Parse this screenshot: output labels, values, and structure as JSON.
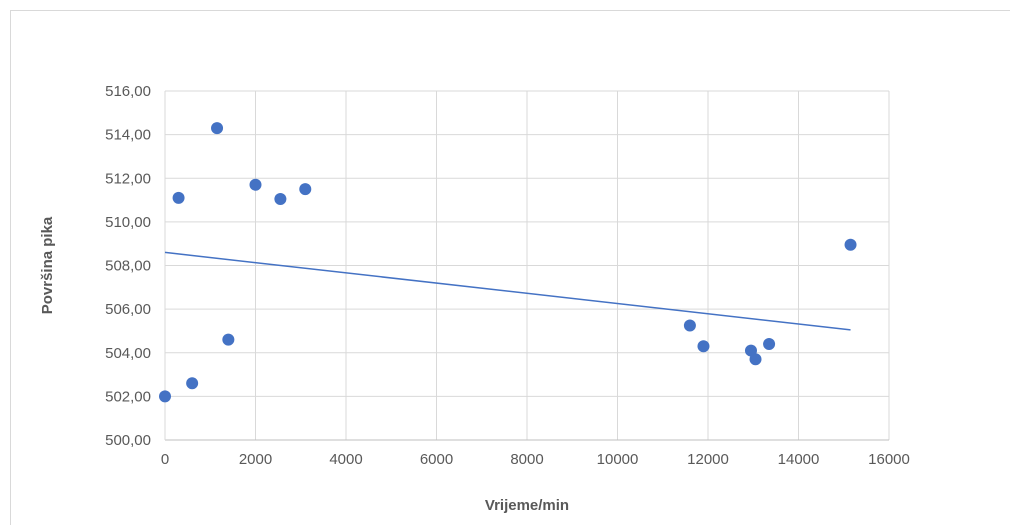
{
  "chart_data": {
    "type": "scatter",
    "title": "",
    "xlabel": "Vrijeme/min",
    "ylabel": "Površina pika",
    "xlim": [
      0,
      16000
    ],
    "ylim": [
      500,
      516
    ],
    "x_ticks": [
      "0",
      "2000",
      "4000",
      "6000",
      "8000",
      "10000",
      "12000",
      "14000",
      "16000"
    ],
    "y_ticks": [
      "500,00",
      "502,00",
      "504,00",
      "506,00",
      "508,00",
      "510,00",
      "512,00",
      "514,00",
      "516,00"
    ],
    "grid": true,
    "legend": "none",
    "series": [
      {
        "color": "#4472c4",
        "points": [
          {
            "x": 0,
            "y": 502.0
          },
          {
            "x": 300,
            "y": 511.1
          },
          {
            "x": 600,
            "y": 502.6
          },
          {
            "x": 1150,
            "y": 514.3
          },
          {
            "x": 1400,
            "y": 504.6
          },
          {
            "x": 2000,
            "y": 511.7
          },
          {
            "x": 2550,
            "y": 511.05
          },
          {
            "x": 3100,
            "y": 511.5
          },
          {
            "x": 11600,
            "y": 505.25
          },
          {
            "x": 11900,
            "y": 504.3
          },
          {
            "x": 12950,
            "y": 504.1
          },
          {
            "x": 13050,
            "y": 503.7
          },
          {
            "x": 13350,
            "y": 504.4
          },
          {
            "x": 15150,
            "y": 508.95
          }
        ]
      }
    ],
    "trendline": {
      "type": "linear",
      "color": "#4472c4",
      "x_start": 0,
      "x_end": 15150,
      "y_start": 508.6,
      "y_end": 505.05
    }
  }
}
